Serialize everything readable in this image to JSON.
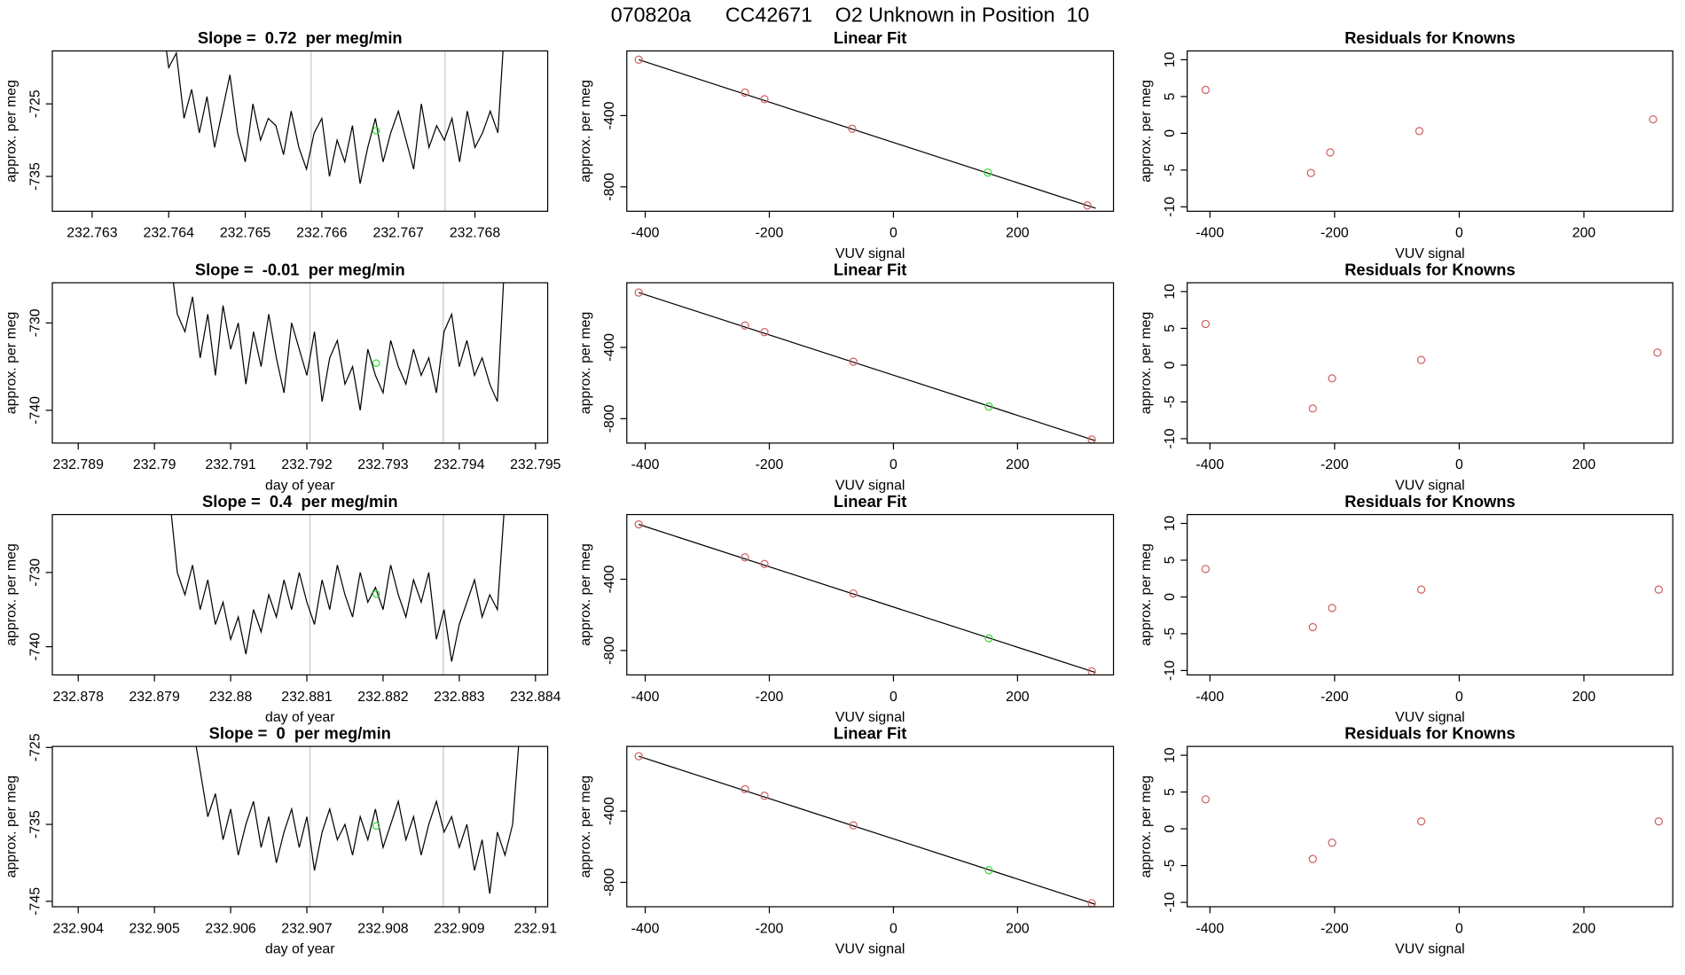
{
  "title": "070820a      CC42671    O2 Unknown in Position  10",
  "chart_data": [
    {
      "type": "line",
      "title": "Slope =  0.72  per meg/min",
      "ylabel": "approx. per meg",
      "color": "#000000",
      "x": [
        232.7639,
        232.764,
        232.7641,
        232.7642,
        232.7643,
        232.7644,
        232.7645,
        232.7646,
        232.7647,
        232.7648,
        232.7649,
        232.765,
        232.7651,
        232.7652,
        232.7653,
        232.7654,
        232.7655,
        232.7656,
        232.7657,
        232.7658,
        232.7659,
        232.766,
        232.7661,
        232.7662,
        232.7663,
        232.7664,
        232.7665,
        232.7666,
        232.7667,
        232.7668,
        232.7669,
        232.767,
        232.7671,
        232.7672,
        232.7673,
        232.7674,
        232.7675,
        232.7676,
        232.7677,
        232.7678,
        232.7679,
        232.768,
        232.7681,
        232.7682,
        232.7683,
        232.7684
      ],
      "values": [
        -712,
        -720,
        -718,
        -727,
        -723,
        -729,
        -724,
        -731,
        -726,
        -721,
        -729,
        -733,
        -725,
        -730,
        -727,
        -728,
        -732,
        -726,
        -731,
        -734,
        -729,
        -727,
        -735,
        -730,
        -733,
        -728,
        -736,
        -731,
        -727,
        -733,
        -729,
        -726,
        -730,
        -734,
        -725,
        -731,
        -728,
        -730,
        -727,
        -733,
        -726,
        -731,
        -729,
        -726,
        -729,
        -712
      ],
      "xlim": [
        232.76248,
        232.76895
      ],
      "ylim": [
        -739.8,
        -717.7
      ],
      "xticks": [
        232.763,
        232.764,
        232.765,
        232.766,
        232.767,
        232.768
      ],
      "yticks": [
        -735,
        -725
      ],
      "vlines": [
        232.76586,
        232.76761
      ],
      "vline_color": "#c8c8c8",
      "marker": {
        "x": 232.76671,
        "y": -728.7,
        "color": "#33dd33"
      }
    },
    {
      "type": "scatter",
      "title": "Linear Fit",
      "xlabel": "VUV signal",
      "ylabel": "approx. per meg",
      "x": [
        -410.5,
        -239.3,
        -207.9,
        -66.4,
        151.9,
        312.6
      ],
      "values": [
        -86,
        -270.8,
        -307.7,
        -473.8,
        -720,
        -904.6
      ],
      "colors": [
        "#d06060",
        "#d06060",
        "#d06060",
        "#d06060",
        "#33dd33",
        "#d06060"
      ],
      "fit": {
        "x": [
          -410.5,
          326
        ],
        "y": [
          -86,
          -920
        ]
      },
      "xlim": [
        -429.7,
        354.6
      ],
      "ylim": [
        -937,
        -36.9
      ],
      "xticks": [
        -400,
        -200,
        0,
        200
      ],
      "yticks": [
        -800,
        -400
      ]
    },
    {
      "type": "scatter",
      "title": "Residuals for Knowns",
      "xlabel": "VUV signal",
      "ylabel": "approx. per meg",
      "x": [
        -407,
        -238,
        -207,
        -64,
        311
      ],
      "values": [
        5.9,
        -5.4,
        -2.6,
        0.3,
        1.9
      ],
      "colors": [
        "#d06060",
        "#d06060",
        "#d06060",
        "#d06060",
        "#d06060"
      ],
      "xlim": [
        -436.5,
        342.6
      ],
      "ylim": [
        -10.6,
        11.2
      ],
      "xticks": [
        -400,
        -200,
        0,
        200
      ],
      "yticks": [
        -10,
        -5,
        0,
        5,
        10
      ]
    },
    {
      "type": "line",
      "title": "Slope =  -0.01  per meg/min",
      "xlabel": "day of year",
      "ylabel": "approx. per meg",
      "color": "#000000",
      "x": [
        232.7902,
        232.7903,
        232.7904,
        232.7905,
        232.7906,
        232.7907,
        232.7908,
        232.7909,
        232.791,
        232.7911,
        232.7912,
        232.7913,
        232.7914,
        232.7915,
        232.7916,
        232.7917,
        232.7918,
        232.7919,
        232.792,
        232.7921,
        232.7922,
        232.7923,
        232.7924,
        232.7925,
        232.7926,
        232.7927,
        232.7928,
        232.7929,
        232.793,
        232.7931,
        232.7932,
        232.7933,
        232.7934,
        232.7935,
        232.7936,
        232.7937,
        232.7938,
        232.7939,
        232.794,
        232.7941,
        232.7942,
        232.7943,
        232.7944,
        232.7945,
        232.7946
      ],
      "values": [
        -722,
        -729,
        -731,
        -727,
        -734,
        -729,
        -736,
        -728,
        -733,
        -730,
        -737,
        -731,
        -735,
        -729,
        -734,
        -738,
        -730,
        -733,
        -736,
        -731,
        -739,
        -734,
        -732,
        -737,
        -735,
        -740,
        -733,
        -736,
        -738,
        -732,
        -735,
        -737,
        -733,
        -736,
        -734,
        -738,
        -731,
        -729,
        -735,
        -732,
        -736,
        -734,
        -737,
        -739,
        -722
      ],
      "xlim": [
        232.78866,
        232.79516
      ],
      "ylim": [
        -743.75,
        -725.4
      ],
      "xticks": [
        232.789,
        232.79,
        232.791,
        232.792,
        232.793,
        232.794,
        232.795
      ],
      "yticks": [
        -740,
        -730
      ],
      "vlines": [
        232.79204,
        232.79379
      ],
      "vline_color": "#c8c8c8",
      "marker": {
        "x": 232.79291,
        "y": -734.6,
        "color": "#33dd33"
      }
    },
    {
      "type": "scatter",
      "title": "Linear Fit",
      "xlabel": "VUV signal",
      "ylabel": "approx. per meg",
      "x": [
        -410.5,
        -239.3,
        -207.9,
        -64.6,
        153.7,
        319.6
      ],
      "values": [
        -92,
        -277,
        -314,
        -480,
        -732,
        -917
      ],
      "colors": [
        "#d06060",
        "#d06060",
        "#d06060",
        "#d06060",
        "#33dd33",
        "#d06060"
      ],
      "fit": {
        "x": [
          -410.5,
          326
        ],
        "y": [
          -92,
          -924
        ]
      },
      "xlim": [
        -429.7,
        354.6
      ],
      "ylim": [
        -937,
        -36.9
      ],
      "xticks": [
        -400,
        -200,
        0,
        200
      ],
      "yticks": [
        -800,
        -400
      ]
    },
    {
      "type": "scatter",
      "title": "Residuals for Knowns",
      "xlabel": "VUV signal",
      "ylabel": "approx. per meg",
      "x": [
        -407,
        -235,
        -204,
        -61,
        318
      ],
      "values": [
        5.6,
        -5.9,
        -1.8,
        0.7,
        1.7
      ],
      "colors": [
        "#d06060",
        "#d06060",
        "#d06060",
        "#d06060",
        "#d06060"
      ],
      "xlim": [
        -436.5,
        342.6
      ],
      "ylim": [
        -10.6,
        11.2
      ],
      "xticks": [
        -400,
        -200,
        0,
        200
      ],
      "yticks": [
        -10,
        -5,
        0,
        5,
        10
      ]
    },
    {
      "type": "line",
      "title": "Slope =  0.4  per meg/min",
      "xlabel": "day of year",
      "ylabel": "approx. per meg",
      "color": "#000000",
      "x": [
        232.8792,
        232.8793,
        232.8794,
        232.8795,
        232.8796,
        232.8797,
        232.8798,
        232.8799,
        232.88,
        232.8801,
        232.8802,
        232.8803,
        232.8804,
        232.8805,
        232.8806,
        232.8807,
        232.8808,
        232.8809,
        232.881,
        232.8811,
        232.8812,
        232.8813,
        232.8814,
        232.8815,
        232.8816,
        232.8817,
        232.8818,
        232.8819,
        232.882,
        232.8821,
        232.8822,
        232.8823,
        232.8824,
        232.8825,
        232.8826,
        232.8827,
        232.8828,
        232.8829,
        232.883,
        232.8831,
        232.8832,
        232.8833,
        232.8834,
        232.8835,
        232.8836
      ],
      "values": [
        -720,
        -730,
        -733,
        -729,
        -735,
        -731,
        -737,
        -734,
        -739,
        -736,
        -741,
        -735,
        -738,
        -733,
        -736,
        -731,
        -735,
        -730,
        -734,
        -737,
        -731,
        -735,
        -729,
        -733,
        -736,
        -730,
        -734,
        -732,
        -735,
        -729,
        -733,
        -736,
        -731,
        -734,
        -730,
        -739,
        -735,
        -742,
        -737,
        -734,
        -731,
        -736,
        -733,
        -735,
        -720
      ],
      "xlim": [
        232.87766,
        232.88416
      ],
      "ylim": [
        -743.8,
        -722.2
      ],
      "xticks": [
        232.878,
        232.879,
        232.88,
        232.881,
        232.882,
        232.883,
        232.884
      ],
      "yticks": [
        -740,
        -730
      ],
      "vlines": [
        232.88104,
        232.88279
      ],
      "vline_color": "#c8c8c8",
      "marker": {
        "x": 232.88191,
        "y": -732.9,
        "color": "#33dd33"
      }
    },
    {
      "type": "scatter",
      "title": "Linear Fit",
      "xlabel": "VUV signal",
      "ylabel": "approx. per meg",
      "x": [
        -410.5,
        -239.3,
        -207.9,
        -64.6,
        153.7,
        319.6
      ],
      "values": [
        -92,
        -277,
        -314,
        -480,
        -732,
        -917
      ],
      "colors": [
        "#d06060",
        "#d06060",
        "#d06060",
        "#d06060",
        "#33dd33",
        "#d06060"
      ],
      "fit": {
        "x": [
          -410.5,
          326
        ],
        "y": [
          -92,
          -924
        ]
      },
      "xlim": [
        -429.7,
        354.6
      ],
      "ylim": [
        -937,
        -36.9
      ],
      "xticks": [
        -400,
        -200,
        0,
        200
      ],
      "yticks": [
        -800,
        -400
      ]
    },
    {
      "type": "scatter",
      "title": "Residuals for Knowns",
      "xlabel": "VUV signal",
      "ylabel": "approx. per meg",
      "x": [
        -407,
        -235,
        -204,
        -61,
        320
      ],
      "values": [
        3.8,
        -4.1,
        -1.5,
        1.0,
        1.0
      ],
      "colors": [
        "#d06060",
        "#d06060",
        "#d06060",
        "#d06060",
        "#d06060"
      ],
      "xlim": [
        -436.5,
        342.6
      ],
      "ylim": [
        -10.6,
        11.2
      ],
      "xticks": [
        -400,
        -200,
        0,
        200
      ],
      "yticks": [
        -10,
        -5,
        0,
        5,
        10
      ]
    },
    {
      "type": "line",
      "title": "Slope =  0  per meg/min",
      "xlabel": "day of year",
      "ylabel": "approx. per meg",
      "color": "#000000",
      "x": [
        232.9055,
        232.9056,
        232.9057,
        232.9058,
        232.9059,
        232.906,
        232.9061,
        232.9062,
        232.9063,
        232.9064,
        232.9065,
        232.9066,
        232.9067,
        232.9068,
        232.9069,
        232.907,
        232.9071,
        232.9072,
        232.9073,
        232.9074,
        232.9075,
        232.9076,
        232.9077,
        232.9078,
        232.9079,
        232.908,
        232.9081,
        232.9082,
        232.9083,
        232.9084,
        232.9085,
        232.9086,
        232.9087,
        232.9088,
        232.9089,
        232.909,
        232.9091,
        232.9092,
        232.9093,
        232.9094,
        232.9095,
        232.9096,
        232.9097,
        232.9098
      ],
      "values": [
        -722,
        -728,
        -734,
        -731,
        -737,
        -733,
        -739,
        -735,
        -732,
        -738,
        -734,
        -740,
        -736,
        -733,
        -738,
        -734,
        -741,
        -736,
        -733,
        -737,
        -735,
        -739,
        -734,
        -737,
        -733,
        -738,
        -735,
        -732,
        -737,
        -734,
        -739,
        -735,
        -732,
        -736,
        -734,
        -738,
        -735,
        -741,
        -737,
        -744,
        -736,
        -739,
        -735,
        -722
      ],
      "xlim": [
        232.90366,
        232.91016
      ],
      "ylim": [
        -745.71,
        -724.86
      ],
      "xticks": [
        232.904,
        232.905,
        232.906,
        232.907,
        232.908,
        232.909,
        232.91
      ],
      "yticks": [
        -745,
        -735,
        -725
      ],
      "vlines": [
        232.90704,
        232.90879
      ],
      "vline_color": "#c8c8c8",
      "marker": {
        "x": 232.90791,
        "y": -735.2,
        "color": "#33dd33"
      }
    },
    {
      "type": "scatter",
      "title": "Linear Fit",
      "xlabel": "VUV signal",
      "ylabel": "approx. per meg",
      "x": [
        -410.5,
        -239.3,
        -207.9,
        -64.6,
        153.7,
        319.6
      ],
      "values": [
        -92,
        -277,
        -314,
        -480,
        -732,
        -917
      ],
      "colors": [
        "#d06060",
        "#d06060",
        "#d06060",
        "#d06060",
        "#33dd33",
        "#d06060"
      ],
      "fit": {
        "x": [
          -410.5,
          326
        ],
        "y": [
          -92,
          -924
        ]
      },
      "xlim": [
        -429.7,
        354.6
      ],
      "ylim": [
        -937,
        -36.9
      ],
      "xticks": [
        -400,
        -200,
        0,
        200
      ],
      "yticks": [
        -800,
        -400
      ]
    },
    {
      "type": "scatter",
      "title": "Residuals for Knowns",
      "xlabel": "VUV signal",
      "ylabel": "approx. per meg",
      "x": [
        -407,
        -235,
        -204,
        -61,
        320
      ],
      "values": [
        4.0,
        -4.1,
        -1.9,
        1.0,
        1.0
      ],
      "colors": [
        "#d06060",
        "#d06060",
        "#d06060",
        "#d06060",
        "#d06060"
      ],
      "xlim": [
        -436.5,
        342.6
      ],
      "ylim": [
        -10.6,
        11.2
      ],
      "xticks": [
        -400,
        -200,
        0,
        200
      ],
      "yticks": [
        -10,
        -5,
        0,
        5,
        10
      ]
    }
  ]
}
